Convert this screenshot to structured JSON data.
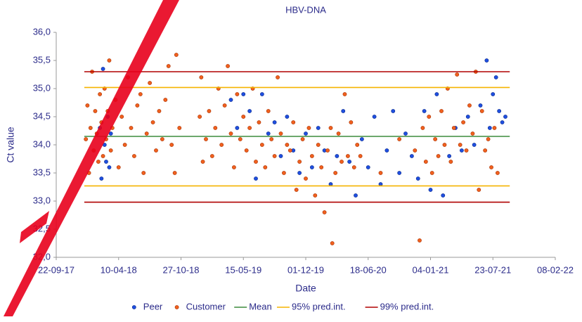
{
  "chart_data": {
    "type": "scatter",
    "title": "HBV-DNA",
    "x_label": "Date",
    "y_label": "Ct value",
    "xlim": [
      43000,
      44600
    ],
    "xticks": [
      {
        "value": 43000,
        "label": "22-09-17"
      },
      {
        "value": 43200,
        "label": "10-04-18"
      },
      {
        "value": 43400,
        "label": "27-10-18"
      },
      {
        "value": 43600,
        "label": "15-05-19"
      },
      {
        "value": 43800,
        "label": "01-12-19"
      },
      {
        "value": 44000,
        "label": "18-06-20"
      },
      {
        "value": 44200,
        "label": "04-01-21"
      },
      {
        "value": 44400,
        "label": "23-07-21"
      },
      {
        "value": 44600,
        "label": "08-02-22"
      }
    ],
    "ylim": [
      32,
      36
    ],
    "yticks": [
      {
        "value": 32,
        "label": "32,0"
      },
      {
        "value": 32.5,
        "label": "32,5"
      },
      {
        "value": 33,
        "label": "33,0"
      },
      {
        "value": 33.5,
        "label": "33,5"
      },
      {
        "value": 34,
        "label": "34,0"
      },
      {
        "value": 34.5,
        "label": "34,5"
      },
      {
        "value": 35,
        "label": "35,0"
      },
      {
        "value": 35.5,
        "label": "35,5"
      },
      {
        "value": 36,
        "label": "36,0"
      }
    ],
    "grid": false,
    "legend": "bottom",
    "series": [
      {
        "name": "Peer",
        "type": "scatter",
        "color": "#1f4fe0",
        "x": [
          43140,
          43145,
          43150,
          43155,
          43160,
          43165,
          43170,
          43175,
          43560,
          43580,
          43600,
          43620,
          43640,
          43660,
          43680,
          43700,
          43720,
          43740,
          43760,
          43780,
          43800,
          43820,
          43840,
          43860,
          43880,
          43900,
          43920,
          43940,
          43960,
          43980,
          44000,
          44020,
          44040,
          44060,
          44080,
          44100,
          44120,
          44140,
          44160,
          44180,
          44200,
          44220,
          44240,
          44260,
          44280,
          44300,
          44320,
          44340,
          44360,
          44380,
          44390,
          44400,
          44410,
          44420,
          44430,
          44440
        ],
        "values": [
          34.3,
          33.4,
          35.35,
          34.0,
          33.7,
          34.5,
          33.6,
          34.2,
          34.8,
          34.3,
          34.9,
          34.6,
          33.4,
          34.9,
          34.2,
          34.4,
          33.8,
          34.5,
          33.9,
          33.5,
          34.2,
          33.6,
          34.3,
          33.9,
          33.3,
          33.8,
          34.6,
          33.7,
          33.1,
          34.1,
          33.6,
          34.5,
          33.3,
          33.9,
          34.6,
          33.5,
          34.2,
          33.8,
          33.4,
          34.6,
          33.2,
          34.9,
          33.1,
          33.8,
          34.3,
          33.9,
          34.5,
          34.0,
          34.7,
          35.5,
          34.3,
          34.9,
          35.2,
          34.6,
          34.4,
          34.5
        ]
      },
      {
        "name": "Customer",
        "type": "scatter",
        "color": "#f0601e",
        "x": [
          43095,
          43100,
          43105,
          43110,
          43115,
          43120,
          43125,
          43130,
          43135,
          43140,
          43145,
          43150,
          43155,
          43160,
          43165,
          43170,
          43175,
          43180,
          43190,
          43200,
          43210,
          43220,
          43230,
          43240,
          43250,
          43260,
          43270,
          43280,
          43290,
          43300,
          43310,
          43320,
          43330,
          43340,
          43350,
          43360,
          43370,
          43380,
          43385,
          43395,
          43460,
          43465,
          43470,
          43480,
          43490,
          43500,
          43510,
          43520,
          43530,
          43540,
          43550,
          43560,
          43570,
          43580,
          43590,
          43600,
          43610,
          43620,
          43630,
          43640,
          43650,
          43660,
          43670,
          43680,
          43690,
          43700,
          43710,
          43720,
          43730,
          43740,
          43750,
          43760,
          43770,
          43780,
          43790,
          43800,
          43810,
          43820,
          43830,
          43840,
          43850,
          43860,
          43870,
          43880,
          43885,
          43895,
          43905,
          43915,
          43925,
          43935,
          43945,
          43955,
          43965,
          43975,
          44040,
          44100,
          44150,
          44165,
          44175,
          44185,
          44195,
          44205,
          44215,
          44225,
          44235,
          44245,
          44255,
          44265,
          44275,
          44285,
          44295,
          44305,
          44315,
          44325,
          44335,
          44345,
          44355,
          44365,
          44375,
          44385,
          44395,
          44405,
          44415
        ],
        "values": [
          34.1,
          34.7,
          33.5,
          34.3,
          35.3,
          33.9,
          34.6,
          34.2,
          33.7,
          34.9,
          34.4,
          33.8,
          35.0,
          34.1,
          34.6,
          35.5,
          33.9,
          34.3,
          34.8,
          33.6,
          34.5,
          34.0,
          35.2,
          34.3,
          33.8,
          34.7,
          34.9,
          33.5,
          34.2,
          35.1,
          34.4,
          33.9,
          34.6,
          34.1,
          34.8,
          35.4,
          34.0,
          33.5,
          35.6,
          34.3,
          34.5,
          35.2,
          33.7,
          34.1,
          34.6,
          33.8,
          34.3,
          35.0,
          34.0,
          34.7,
          35.4,
          34.2,
          33.6,
          34.9,
          34.1,
          34.5,
          33.9,
          34.3,
          35.0,
          33.7,
          34.4,
          34.0,
          33.6,
          34.6,
          34.1,
          33.8,
          35.2,
          34.2,
          33.5,
          34.0,
          33.9,
          34.4,
          33.2,
          33.7,
          34.1,
          33.4,
          34.3,
          33.8,
          33.1,
          34.0,
          33.6,
          32.8,
          33.9,
          34.3,
          32.25,
          33.5,
          34.2,
          33.7,
          34.9,
          33.8,
          34.4,
          33.6,
          34.0,
          33.8,
          33.5,
          34.1,
          33.9,
          32.3,
          34.3,
          33.7,
          34.5,
          33.5,
          34.1,
          33.8,
          34.6,
          34.0,
          35.0,
          33.7,
          34.3,
          35.25,
          34.0,
          34.4,
          33.9,
          34.7,
          34.2,
          35.3,
          33.2,
          34.6,
          33.9,
          34.1,
          33.6,
          34.3,
          33.5
        ]
      },
      {
        "name": "Mean",
        "type": "line",
        "color": "#3d8b3d",
        "x": [
          43090,
          44454
        ],
        "values": [
          34.15,
          34.15
        ]
      },
      {
        "name": "95% pred.int.",
        "type": "line",
        "color": "#f5b400",
        "x": [
          43090,
          44454,
          44454,
          43090,
          44454
        ],
        "values": [
          35.02,
          35.02,
          null,
          33.27,
          33.27
        ]
      },
      {
        "name": "99% pred.int.",
        "type": "line",
        "color": "#b00000",
        "x": [
          43090,
          44454,
          44454,
          43090,
          44454
        ],
        "values": [
          35.3,
          35.3,
          null,
          32.98,
          32.98
        ]
      }
    ]
  }
}
